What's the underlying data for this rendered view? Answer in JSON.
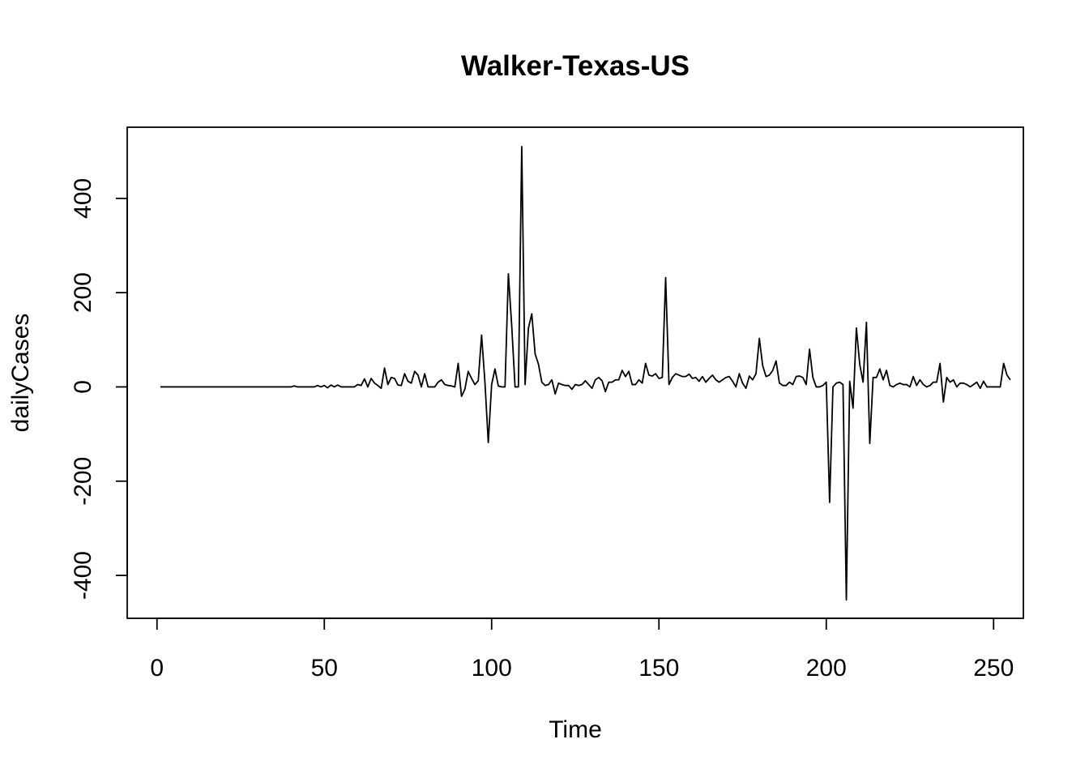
{
  "chart_data": {
    "type": "line",
    "title": "Walker-Texas-US",
    "xlabel": "Time",
    "ylabel": "dailyCases",
    "xlim": [
      -8.9,
      258.9
    ],
    "ylim": [
      -491,
      551
    ],
    "x_ticks": [
      0,
      50,
      100,
      150,
      200,
      250
    ],
    "y_ticks": [
      -400,
      -200,
      0,
      200,
      400
    ],
    "grid": false,
    "legend": "none",
    "line_color": "#000000",
    "series": [
      {
        "x_start": 1,
        "values": [
          0,
          0,
          0,
          0,
          0,
          0,
          0,
          0,
          0,
          0,
          0,
          0,
          0,
          0,
          0,
          0,
          0,
          0,
          0,
          0,
          0,
          0,
          0,
          0,
          0,
          0,
          0,
          0,
          0,
          0,
          0,
          0,
          0,
          0,
          0,
          0,
          0,
          0,
          0,
          0,
          2,
          0,
          0,
          0,
          0,
          0,
          0,
          3,
          0,
          3,
          -2,
          4,
          0,
          4,
          0,
          0,
          0,
          0,
          0,
          5,
          3,
          17,
          0,
          18,
          8,
          3,
          -3,
          40,
          5,
          20,
          18,
          4,
          3,
          28,
          12,
          8,
          33,
          25,
          0,
          28,
          0,
          0,
          0,
          10,
          15,
          5,
          3,
          2,
          0,
          50,
          -20,
          -5,
          33,
          18,
          5,
          13,
          110,
          10,
          -118,
          5,
          38,
          2,
          0,
          0,
          240,
          130,
          0,
          0,
          510,
          5,
          125,
          155,
          70,
          48,
          10,
          3,
          5,
          15,
          -15,
          8,
          5,
          3,
          3,
          -5,
          5,
          3,
          5,
          13,
          5,
          -3,
          15,
          20,
          13,
          -10,
          10,
          10,
          15,
          15,
          35,
          22,
          33,
          5,
          5,
          15,
          8,
          50,
          25,
          23,
          28,
          18,
          20,
          232,
          5,
          20,
          28,
          25,
          22,
          22,
          27,
          18,
          20,
          12,
          22,
          10,
          18,
          25,
          15,
          10,
          15,
          20,
          22,
          12,
          0,
          28,
          8,
          -3,
          23,
          15,
          28,
          103,
          45,
          22,
          25,
          35,
          55,
          8,
          3,
          3,
          10,
          5,
          22,
          23,
          20,
          5,
          80,
          20,
          0,
          0,
          3,
          10,
          -245,
          0,
          8,
          10,
          5,
          -452,
          12,
          -45,
          125,
          48,
          10,
          137,
          -120,
          20,
          20,
          38,
          15,
          35,
          3,
          0,
          5,
          8,
          5,
          5,
          0,
          22,
          3,
          15,
          5,
          0,
          3,
          10,
          10,
          50,
          -32,
          20,
          10,
          15,
          0,
          8,
          8,
          5,
          0,
          5,
          10,
          -3,
          12,
          0,
          0,
          0,
          0,
          0,
          50,
          25,
          15
        ]
      }
    ]
  }
}
